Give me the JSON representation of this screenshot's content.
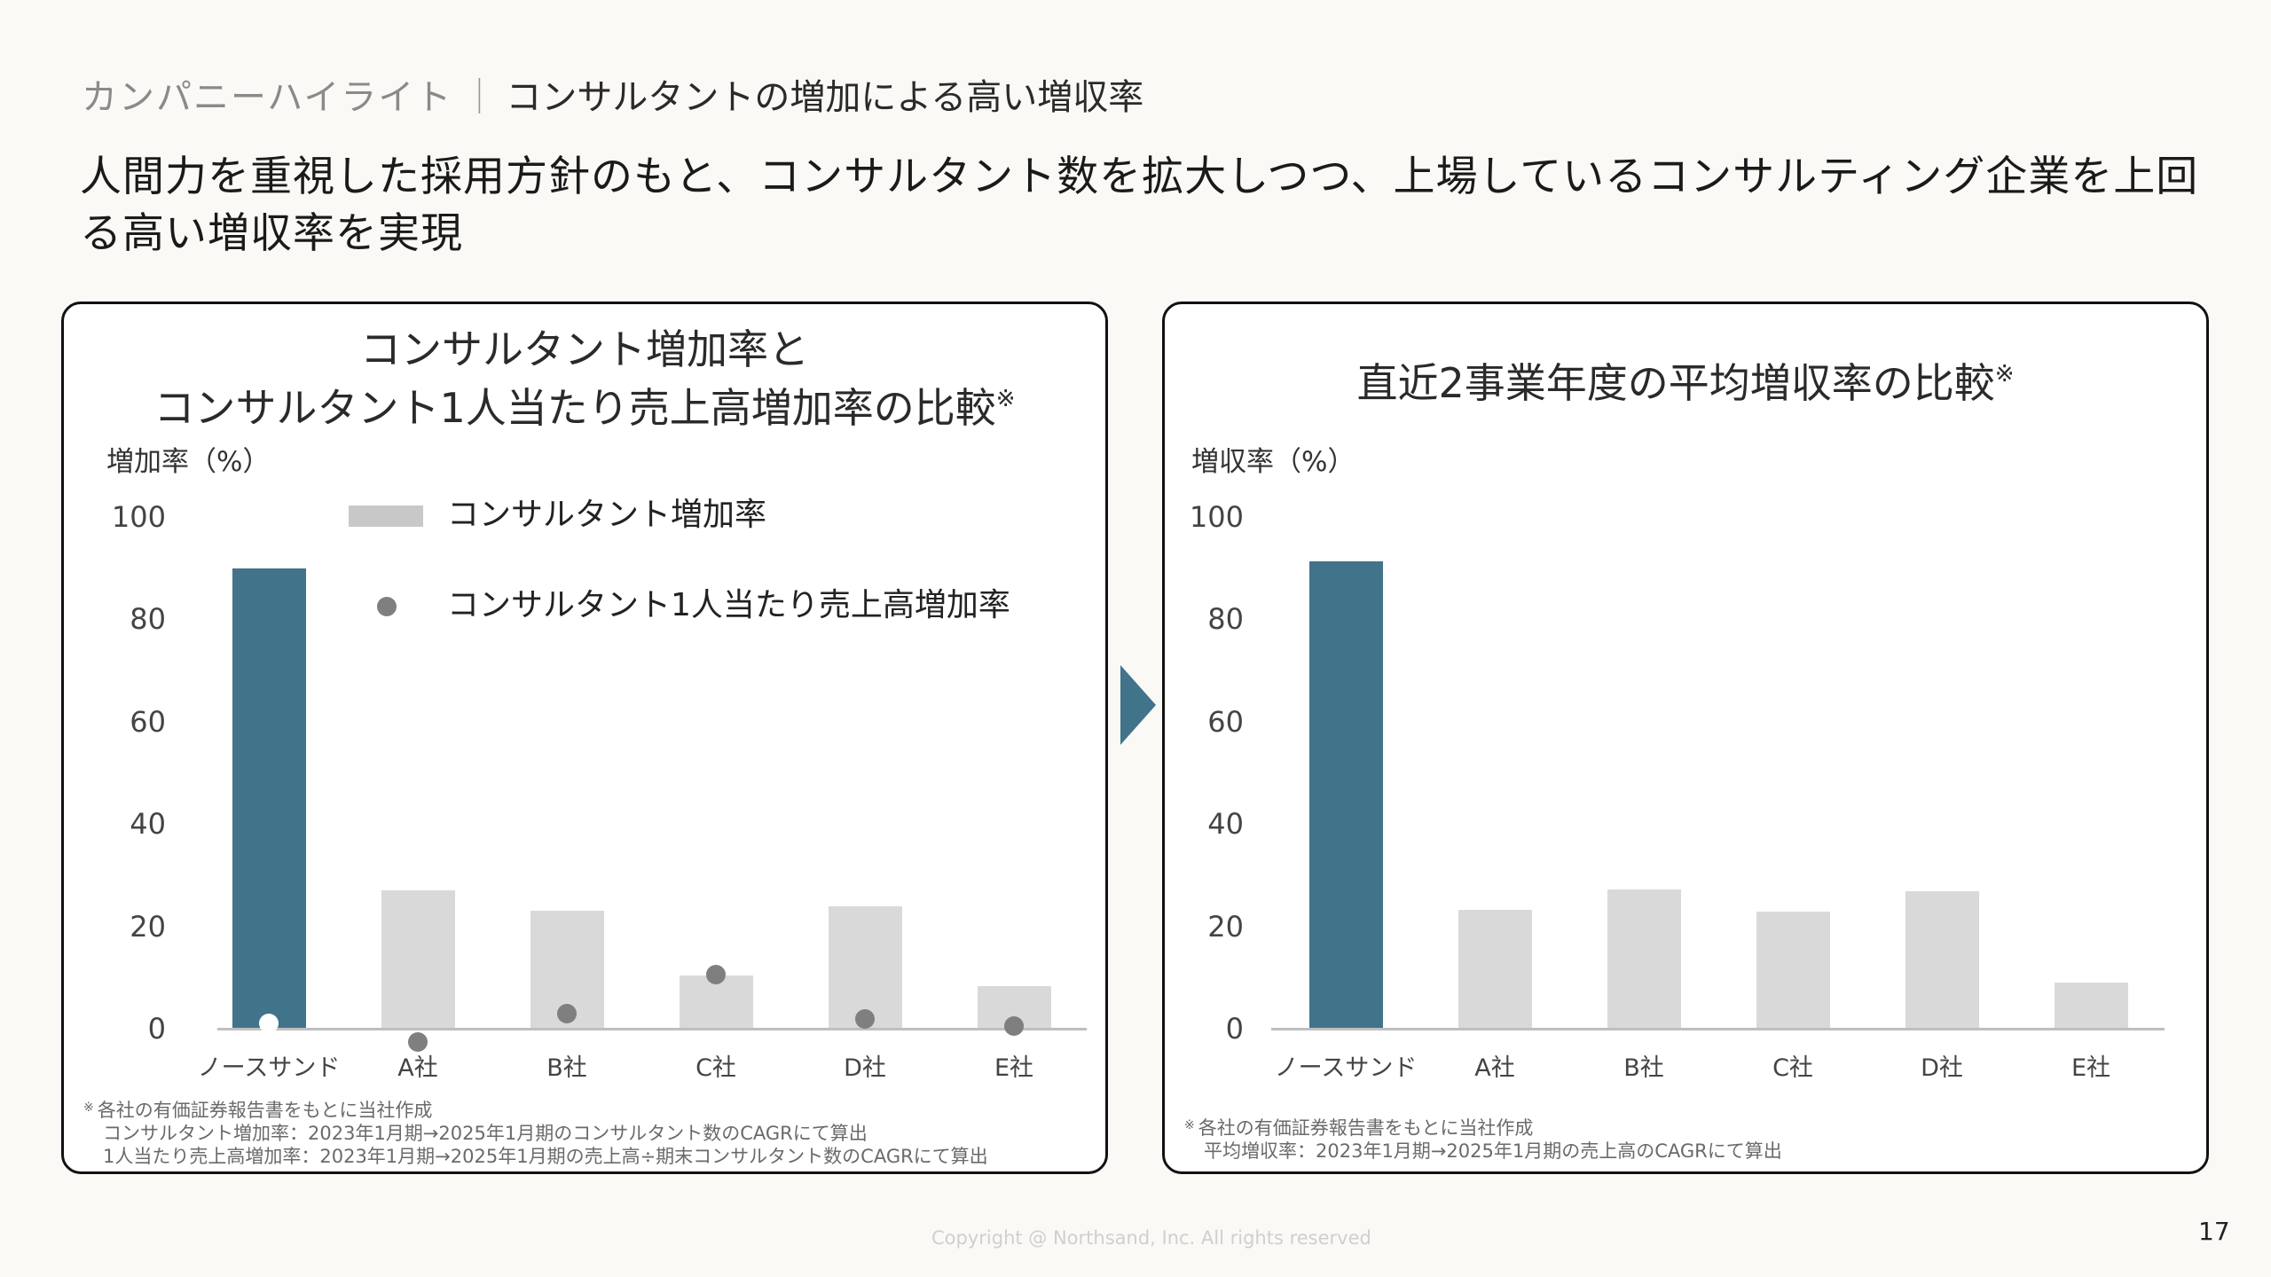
{
  "header": {
    "section": "カンパニーハイライト",
    "separator": "｜",
    "topic": "コンサルタントの増加による高い増収率"
  },
  "lead": "人間力を重視した採用方針のもと、コンサルタント数を拡大しつつ、上場しているコンサルティング企業を上回る高い増収率を実現",
  "colors": {
    "background": "#fbf9f5",
    "highlight_bar": "#41738b",
    "other_bar": "#d9d9d9",
    "dot": "#7f7f7f",
    "arrow": "#41738b"
  },
  "left_chart": {
    "title_line1": "コンサルタント増加率と",
    "title_line2": "コンサルタント1人当たり売上高増加率の比較",
    "title_mark": "※",
    "ylabel": "増加率（%）",
    "legend": {
      "bar_label": "コンサルタント増加率",
      "dot_label": "コンサルタント1人当たり売上高増加率"
    },
    "footnotes": {
      "line1_mark": "※",
      "line1": "各社の有価証券報告書をもとに当社作成",
      "line2": "コンサルタント増加率：2023年1月期→2025年1月期のコンサルタント数のCAGRにて算出",
      "line3": "1人当たり売上高増加率：2023年1月期→2025年1月期の売上高÷期末コンサルタント数のCAGRにて算出"
    }
  },
  "right_chart": {
    "title": "直近2事業年度の平均増収率の比較",
    "title_mark": "※",
    "ylabel": "増収率（%）",
    "footnotes": {
      "line1_mark": "※",
      "line1": "各社の有価証券報告書をもとに当社作成",
      "line2": "平均増収率：2023年1月期→2025年1月期の売上高のCAGRにて算出"
    }
  },
  "chart_data": [
    {
      "type": "bar",
      "title": "コンサルタント増加率とコンサルタント1人当たり売上高増加率の比較※",
      "xlabel": "",
      "ylabel": "増加率（%）",
      "ylim": [
        0,
        100
      ],
      "yticks": [
        0,
        20,
        40,
        60,
        80,
        100
      ],
      "grid": false,
      "legend_position": "top-center-inside",
      "categories": [
        "ノースサンド",
        "A社",
        "B社",
        "C社",
        "D社",
        "E社"
      ],
      "series": [
        {
          "name": "コンサルタント増加率",
          "type": "bar",
          "values": [
            90,
            27,
            23,
            10.4,
            24,
            8.4
          ]
        },
        {
          "name": "コンサルタント1人当たり売上高増加率",
          "type": "scatter",
          "values": [
            1,
            -2.6,
            3,
            10.6,
            1.9,
            0.5
          ]
        }
      ],
      "highlight_category": "ノースサンド"
    },
    {
      "type": "bar",
      "title": "直近2事業年度の平均増収率の比較※",
      "xlabel": "",
      "ylabel": "増収率（%）",
      "ylim": [
        0,
        100
      ],
      "yticks": [
        0,
        20,
        40,
        60,
        80,
        100
      ],
      "grid": false,
      "categories": [
        "ノースサンド",
        "A社",
        "B社",
        "C社",
        "D社",
        "E社"
      ],
      "series": [
        {
          "name": "平均増収率",
          "values": [
            91.3,
            23.2,
            27.2,
            22.9,
            26.8,
            9
          ]
        }
      ],
      "highlight_category": "ノースサンド"
    }
  ],
  "footer": {
    "copyright": "Copyright @ Northsand, Inc. All rights reserved",
    "page_number": "17"
  }
}
